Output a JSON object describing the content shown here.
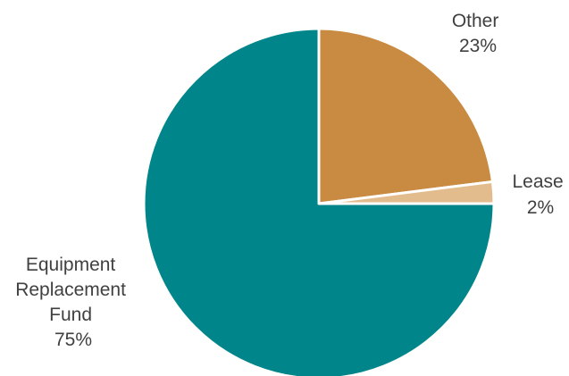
{
  "chart_data": {
    "type": "pie",
    "title": "",
    "start_angle_deg": 0,
    "direction": "clockwise",
    "slices": [
      {
        "label": "Other",
        "value": 23,
        "value_label": "23%",
        "color": "#c98a42"
      },
      {
        "label": "Lease",
        "value": 2,
        "value_label": "2%",
        "color": "#e3bc8d"
      },
      {
        "label": "Equipment Replacement Fund",
        "label_lines": [
          "Equipment",
          "Replacement",
          "Fund"
        ],
        "value": 75,
        "value_label": "75%",
        "color": "#00858a"
      }
    ],
    "legend": "none",
    "data_labels": "outside"
  }
}
